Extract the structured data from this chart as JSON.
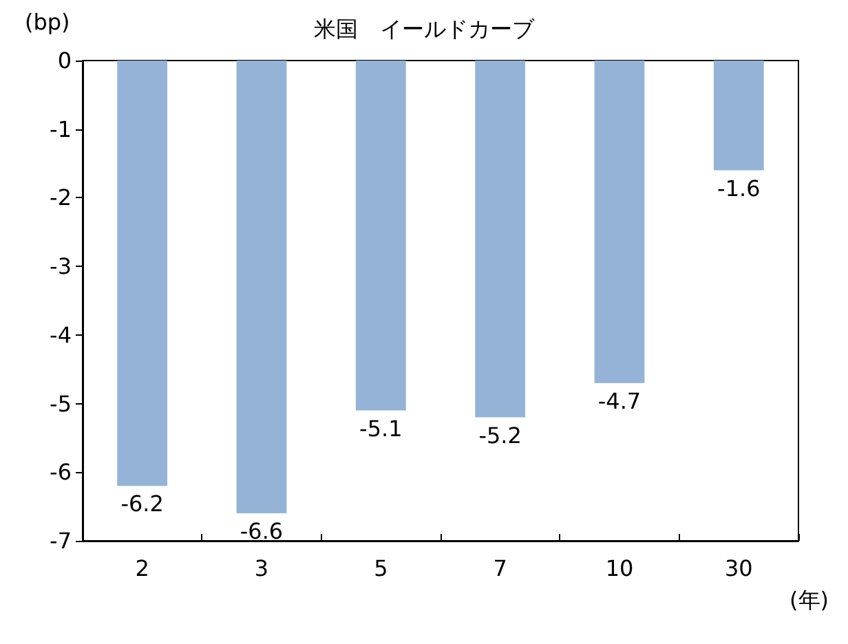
{
  "chart_data": {
    "type": "bar",
    "title": "米国　イールドカーブ",
    "ylabel": "(bp)",
    "xlabel": "(年)",
    "categories": [
      "2",
      "3",
      "5",
      "7",
      "10",
      "30"
    ],
    "values": [
      -6.2,
      -6.6,
      -5.1,
      -5.2,
      -4.7,
      -1.6
    ],
    "color": "#95b3d7",
    "ylim": [
      -7,
      0
    ],
    "yticks": [
      -7,
      -6,
      -5,
      -4,
      -3,
      -2,
      -1,
      0
    ],
    "data_labels": true
  }
}
